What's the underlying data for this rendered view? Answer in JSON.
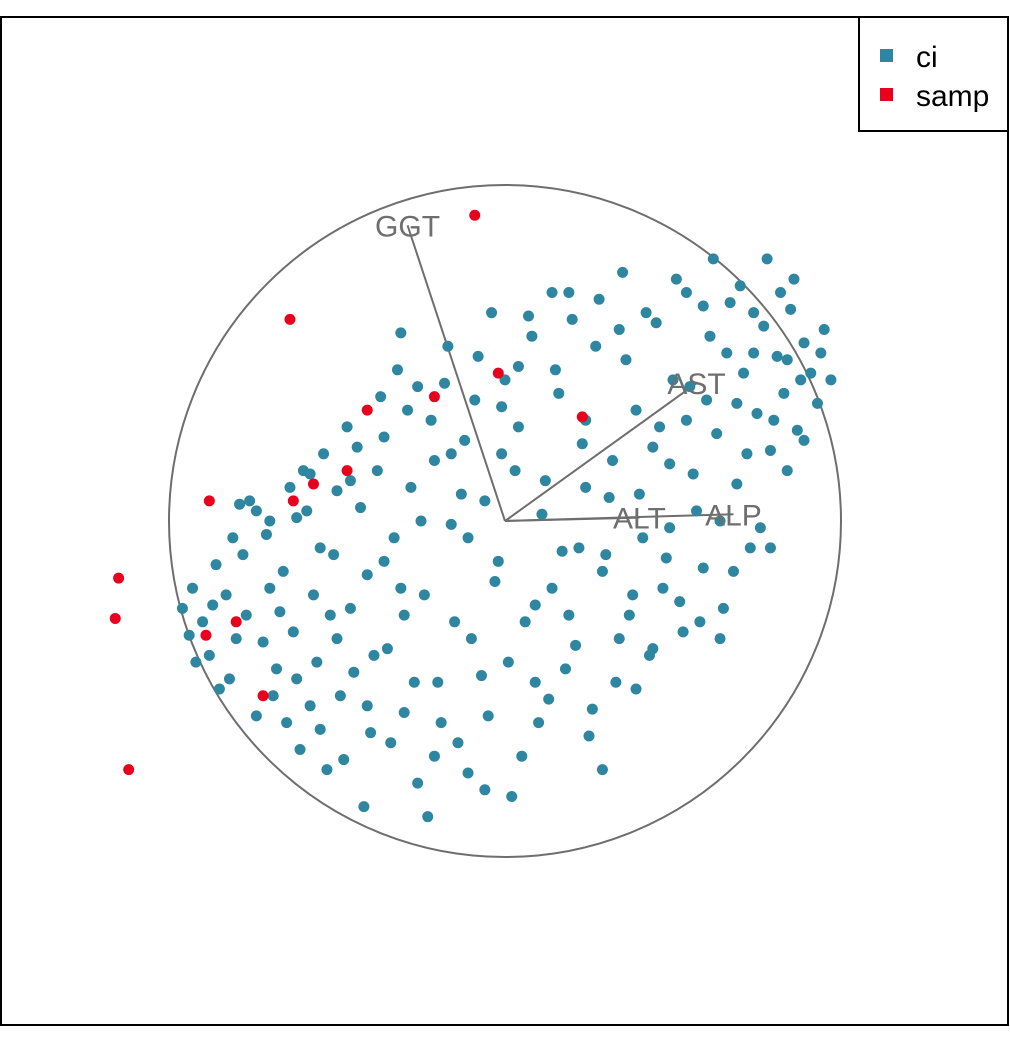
{
  "chart_data": {
    "type": "scatter",
    "title": "",
    "grid": false,
    "legend_position": "top-right",
    "colors": {
      "ci": "#2e86a0",
      "samp": "#e8001c",
      "overlay": "#6e6e6e"
    },
    "xlim": [
      -1.1,
      1.1
    ],
    "ylim": [
      -1.1,
      1.1
    ],
    "unit_circle": {
      "radius": 1
    },
    "loadings": [
      {
        "label": "GGT",
        "x": -0.29,
        "y": 0.88
      },
      {
        "label": "AST",
        "x": 0.57,
        "y": 0.41
      },
      {
        "label": "ALT",
        "x": 0.4,
        "y": 0.01
      },
      {
        "label": "ALP",
        "x": 0.68,
        "y": 0.02
      }
    ],
    "series": [
      {
        "name": "ci",
        "points": [
          [
            -0.96,
            -0.26
          ],
          [
            -0.94,
            -0.34
          ],
          [
            -0.88,
            -0.4
          ],
          [
            -0.85,
            -0.5
          ],
          [
            -0.8,
            -0.35
          ],
          [
            -0.78,
            -0.1
          ],
          [
            -0.74,
            0.03
          ],
          [
            -0.7,
            -0.2
          ],
          [
            -0.68,
            -0.44
          ],
          [
            -0.65,
            -0.6
          ],
          [
            -0.62,
            0.01
          ],
          [
            -0.6,
            0.15
          ],
          [
            -0.58,
            -0.55
          ],
          [
            -0.55,
            -0.08
          ],
          [
            -0.52,
            -0.28
          ],
          [
            -0.5,
            0.09
          ],
          [
            -0.48,
            -0.71
          ],
          [
            -0.45,
            -0.45
          ],
          [
            -0.44,
            0.22
          ],
          [
            -0.41,
            -0.16
          ],
          [
            -0.4,
            -0.63
          ],
          [
            -0.37,
            0.37
          ],
          [
            -0.35,
            -0.38
          ],
          [
            -0.33,
            -0.05
          ],
          [
            -0.31,
            0.56
          ],
          [
            -0.3,
            -0.57
          ],
          [
            -0.28,
            0.1
          ],
          [
            -0.26,
            -0.78
          ],
          [
            -0.24,
            -0.22
          ],
          [
            -0.22,
            0.3
          ],
          [
            -0.2,
            -0.48
          ],
          [
            -0.18,
            0.41
          ],
          [
            -0.16,
            -0.01
          ],
          [
            -0.14,
            -0.66
          ],
          [
            -0.12,
            0.24
          ],
          [
            -0.1,
            -0.35
          ],
          [
            -0.08,
            0.49
          ],
          [
            -0.06,
            0.06
          ],
          [
            -0.05,
            -0.58
          ],
          [
            -0.03,
            -0.18
          ],
          [
            -0.01,
            0.34
          ],
          [
            0.01,
            -0.42
          ],
          [
            0.03,
            0.15
          ],
          [
            0.05,
            -0.7
          ],
          [
            0.07,
            0.61
          ],
          [
            0.09,
            -0.25
          ],
          [
            0.11,
            0.02
          ],
          [
            0.13,
            -0.53
          ],
          [
            0.15,
            0.45
          ],
          [
            0.17,
            -0.09
          ],
          [
            0.19,
            0.68
          ],
          [
            0.21,
            -0.37
          ],
          [
            0.23,
            0.23
          ],
          [
            0.25,
            -0.64
          ],
          [
            0.27,
            0.52
          ],
          [
            0.29,
            -0.15
          ],
          [
            0.31,
            0.07
          ],
          [
            0.33,
            -0.48
          ],
          [
            0.35,
            0.74
          ],
          [
            0.37,
            -0.28
          ],
          [
            0.39,
            0.33
          ],
          [
            0.41,
            -0.05
          ],
          [
            0.43,
            -0.4
          ],
          [
            0.45,
            0.59
          ],
          [
            0.47,
            -0.2
          ],
          [
            0.49,
            0.17
          ],
          [
            0.51,
            0.72
          ],
          [
            0.53,
            -0.33
          ],
          [
            0.55,
            0.4
          ],
          [
            0.57,
            0.03
          ],
          [
            0.59,
            -0.14
          ],
          [
            0.61,
            0.55
          ],
          [
            0.63,
            0.26
          ],
          [
            0.65,
            -0.26
          ],
          [
            0.67,
            0.65
          ],
          [
            0.69,
            0.11
          ],
          [
            0.71,
            0.44
          ],
          [
            0.73,
            -0.08
          ],
          [
            0.75,
            0.32
          ],
          [
            0.77,
            0.58
          ],
          [
            0.79,
            0.21
          ],
          [
            0.81,
            0.49
          ],
          [
            0.83,
            0.38
          ],
          [
            0.85,
            0.63
          ],
          [
            0.87,
            0.27
          ],
          [
            0.89,
            0.53
          ],
          [
            0.91,
            0.44
          ],
          [
            0.93,
            0.35
          ],
          [
            0.95,
            0.57
          ],
          [
            0.97,
            0.42
          ],
          [
            -0.93,
            -0.2
          ],
          [
            -0.9,
            -0.3
          ],
          [
            -0.86,
            -0.13
          ],
          [
            -0.83,
            -0.22
          ],
          [
            -0.81,
            -0.05
          ],
          [
            -0.77,
            -0.28
          ],
          [
            -0.76,
            0.06
          ],
          [
            -0.72,
            -0.36
          ],
          [
            -0.7,
            0.0
          ],
          [
            -0.69,
            -0.52
          ],
          [
            -0.66,
            -0.15
          ],
          [
            -0.64,
            0.1
          ],
          [
            -0.63,
            -0.33
          ],
          [
            -0.61,
            -0.68
          ],
          [
            -0.59,
            0.03
          ],
          [
            -0.57,
            -0.22
          ],
          [
            -0.56,
            -0.42
          ],
          [
            -0.54,
            0.2
          ],
          [
            -0.53,
            -0.74
          ],
          [
            -0.51,
            -0.1
          ],
          [
            -0.49,
            -0.52
          ],
          [
            -0.47,
            0.28
          ],
          [
            -0.46,
            -0.26
          ],
          [
            -0.43,
            0.04
          ],
          [
            -0.42,
            -0.85
          ],
          [
            -0.39,
            -0.4
          ],
          [
            -0.38,
            0.15
          ],
          [
            -0.36,
            -0.12
          ],
          [
            -0.34,
            -0.66
          ],
          [
            -0.32,
            0.45
          ],
          [
            -0.3,
            -0.28
          ],
          [
            -0.29,
            0.33
          ],
          [
            -0.27,
            -0.48
          ],
          [
            -0.25,
            0.0
          ],
          [
            -0.23,
            -0.88
          ],
          [
            -0.21,
            0.18
          ],
          [
            -0.19,
            -0.6
          ],
          [
            -0.17,
            0.52
          ],
          [
            -0.15,
            -0.3
          ],
          [
            -0.13,
            0.08
          ],
          [
            -0.11,
            -0.75
          ],
          [
            -0.09,
            0.36
          ],
          [
            -0.07,
            -0.46
          ],
          [
            -0.04,
            0.62
          ],
          [
            -0.02,
            -0.12
          ],
          [
            0.0,
            0.42
          ],
          [
            0.02,
            -0.82
          ],
          [
            0.04,
            0.28
          ],
          [
            0.06,
            -0.3
          ],
          [
            0.08,
            0.55
          ],
          [
            0.1,
            -0.6
          ],
          [
            0.12,
            0.12
          ],
          [
            0.14,
            -0.2
          ],
          [
            0.16,
            0.38
          ],
          [
            0.18,
            -0.44
          ],
          [
            0.2,
            0.6
          ],
          [
            0.22,
            -0.08
          ],
          [
            0.24,
            0.3
          ],
          [
            0.26,
            -0.56
          ],
          [
            0.28,
            0.66
          ],
          [
            0.3,
            -0.1
          ],
          [
            0.32,
            0.18
          ],
          [
            0.34,
            -0.35
          ],
          [
            0.36,
            0.48
          ],
          [
            0.38,
            -0.22
          ],
          [
            0.4,
            0.08
          ],
          [
            0.42,
            0.62
          ],
          [
            0.44,
            -0.38
          ],
          [
            0.46,
            0.28
          ],
          [
            0.48,
            -0.11
          ],
          [
            0.5,
            0.42
          ],
          [
            0.52,
            -0.24
          ],
          [
            0.54,
            0.68
          ],
          [
            0.56,
            0.14
          ],
          [
            0.58,
            -0.3
          ],
          [
            0.6,
            0.36
          ],
          [
            0.62,
            0.78
          ],
          [
            0.64,
            0.0
          ],
          [
            0.66,
            0.5
          ],
          [
            0.68,
            -0.15
          ],
          [
            0.7,
            0.7
          ],
          [
            0.72,
            0.2
          ],
          [
            0.74,
            0.5
          ],
          [
            0.76,
            -0.02
          ],
          [
            0.78,
            0.78
          ],
          [
            0.8,
            0.3
          ],
          [
            0.82,
            0.68
          ],
          [
            0.84,
            0.15
          ],
          [
            0.86,
            0.72
          ],
          [
            0.88,
            0.42
          ],
          [
            -0.92,
            -0.42
          ],
          [
            -0.87,
            -0.25
          ],
          [
            -0.82,
            -0.47
          ],
          [
            -0.79,
            0.05
          ],
          [
            -0.74,
            -0.58
          ],
          [
            -0.71,
            -0.04
          ],
          [
            -0.67,
            -0.27
          ],
          [
            -0.62,
            -0.47
          ],
          [
            -0.58,
            0.14
          ],
          [
            -0.55,
            -0.62
          ],
          [
            -0.5,
            -0.35
          ],
          [
            -0.46,
            0.12
          ],
          [
            -0.41,
            -0.55
          ],
          [
            -0.36,
            0.25
          ],
          [
            -0.31,
            -0.2
          ],
          [
            -0.26,
            0.4
          ],
          [
            -0.21,
            -0.7
          ],
          [
            -0.16,
            0.2
          ],
          [
            -0.11,
            -0.05
          ],
          [
            -0.06,
            -0.8
          ],
          [
            -0.01,
            0.2
          ],
          [
            0.04,
            0.46
          ],
          [
            0.09,
            -0.48
          ],
          [
            0.14,
            0.68
          ],
          [
            0.19,
            -0.28
          ],
          [
            0.24,
            0.1
          ],
          [
            0.29,
            -0.74
          ],
          [
            0.34,
            0.57
          ],
          [
            0.39,
            -0.5
          ],
          [
            0.44,
            0.22
          ],
          [
            0.49,
            -0.02
          ],
          [
            0.54,
            0.3
          ],
          [
            0.59,
            0.64
          ],
          [
            0.64,
            -0.35
          ],
          [
            0.69,
            0.35
          ],
          [
            0.74,
            0.62
          ],
          [
            0.79,
            -0.08
          ],
          [
            0.84,
            0.48
          ],
          [
            0.89,
            0.24
          ],
          [
            0.94,
            0.5
          ]
        ]
      },
      {
        "name": "samp",
        "points": [
          [
            -0.09,
            0.91
          ],
          [
            -0.64,
            0.6
          ],
          [
            -0.02,
            0.44
          ],
          [
            -0.21,
            0.37
          ],
          [
            -0.41,
            0.33
          ],
          [
            0.23,
            0.31
          ],
          [
            -0.47,
            0.15
          ],
          [
            -0.57,
            0.11
          ],
          [
            -0.63,
            0.06
          ],
          [
            -0.88,
            0.06
          ],
          [
            -1.15,
            -0.17
          ],
          [
            -1.16,
            -0.29
          ],
          [
            -0.89,
            -0.34
          ],
          [
            -0.8,
            -0.3
          ],
          [
            -0.72,
            -0.52
          ],
          [
            -1.12,
            -0.74
          ]
        ]
      }
    ]
  }
}
